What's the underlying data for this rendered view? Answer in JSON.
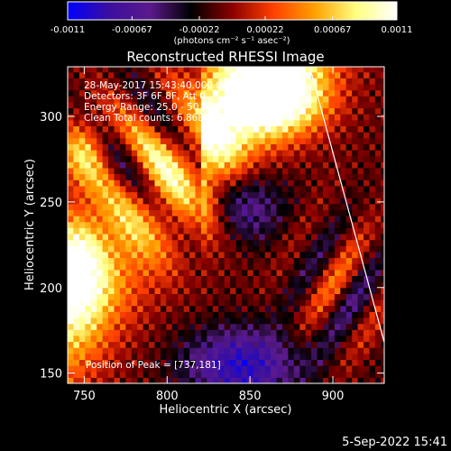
{
  "chart_data": {
    "type": "heatmap",
    "title": "Reconstructed RHESSI Image",
    "xlabel": "Heliocentric X (arcsec)",
    "ylabel": "Heliocentric Y (arcsec)",
    "xlim": [
      740,
      931
    ],
    "ylim": [
      144,
      329
    ],
    "x_ticks": [
      750,
      800,
      850,
      900
    ],
    "y_ticks": [
      150,
      200,
      250,
      300
    ],
    "colorbar": {
      "min": -0.0011,
      "max": 0.0011,
      "ticks": [
        "-0.0011",
        "-0.00067",
        "-0.00022",
        "0.00022",
        "0.00067",
        "0.0011"
      ],
      "unit_label": "(photons cm⁻² s⁻¹ asec⁻²)",
      "colormap": [
        "#0000ff",
        "#3a0f9f",
        "#5b1a8c",
        "#000000",
        "#8b0000",
        "#ff4000",
        "#ffa000",
        "#ffff80",
        "#ffffff"
      ]
    },
    "annotations": [
      "28-May-2017 15:43:40.000 to 15:48:40.000",
      "Detectors: 3F 6F 8F, Att 0",
      "Energy Range: 25.0 - 50.0 keV",
      "Clean     Total counts: 6.86E+03"
    ],
    "peak_label": "Position of Peak = [737,181]",
    "limb_line": [
      [
        886,
        329
      ],
      [
        931,
        168
      ]
    ]
  },
  "timestamp": "5-Sep-2022 15:41"
}
